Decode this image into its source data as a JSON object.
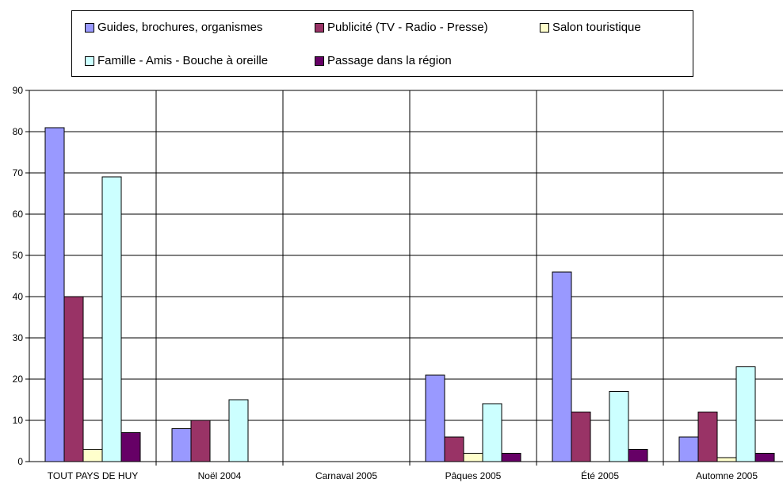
{
  "chart_data": {
    "type": "bar",
    "categories": [
      "TOUT PAYS DE HUY",
      "Noël 2004",
      "Carnaval 2005",
      "Pâques 2005",
      "Été 2005",
      "Automne 2005"
    ],
    "series": [
      {
        "name": "Guides, brochures, organismes",
        "color": "#9999ff",
        "values": [
          81,
          8,
          null,
          21,
          46,
          6
        ]
      },
      {
        "name": "Publicité (TV - Radio - Presse)",
        "color": "#993366",
        "values": [
          40,
          10,
          null,
          6,
          12,
          12
        ]
      },
      {
        "name": "Salon touristique",
        "color": "#ffffcc",
        "values": [
          3,
          null,
          null,
          2,
          null,
          1
        ]
      },
      {
        "name": "Famille - Amis - Bouche à oreille",
        "color": "#ccffff",
        "values": [
          69,
          15,
          null,
          14,
          17,
          23
        ]
      },
      {
        "name": "Passage dans la région",
        "color": "#660066",
        "values": [
          7,
          null,
          null,
          2,
          3,
          2
        ]
      }
    ],
    "ylim": [
      0,
      90
    ],
    "yticks": [
      0,
      10,
      20,
      30,
      40,
      50,
      60,
      70,
      80,
      90
    ],
    "grid": true,
    "legend_position": "top"
  }
}
